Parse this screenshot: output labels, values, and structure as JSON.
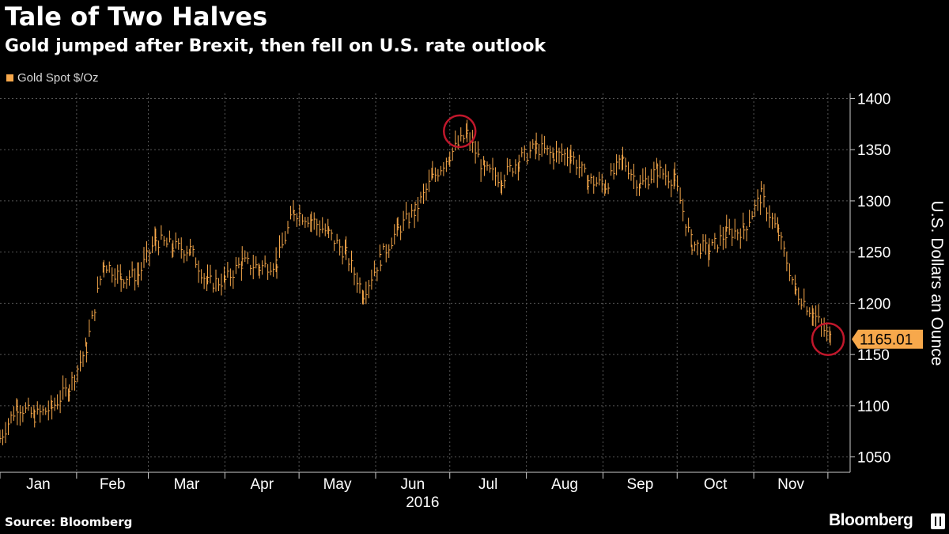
{
  "header": {
    "title": "Tale of Two Halves",
    "subtitle": "Gold jumped after Brexit, then fell on U.S. rate outlook"
  },
  "footer": {
    "source": "Source: Bloomberg",
    "brand": "Bloomberg"
  },
  "colors": {
    "background": "#000000",
    "series": "#f7a84b",
    "highlight_circle": "#c0172b",
    "grid": "#555555"
  },
  "chart_data": {
    "type": "line",
    "title": "Tale of Two Halves",
    "subtitle": "Gold jumped after Brexit, then fell on U.S. rate outlook",
    "xlabel": "2016",
    "ylabel": "U.S. Dollars an Ounce",
    "legend": [
      "Gold Spot $/Oz"
    ],
    "legend_placement": "top-left",
    "x_ticks": [
      "Jan",
      "Feb",
      "Mar",
      "Apr",
      "May",
      "Jun",
      "Jul",
      "Aug",
      "Sep",
      "Oct",
      "Nov"
    ],
    "year_label": "2016",
    "y_ticks": [
      1050,
      1100,
      1150,
      1200,
      1250,
      1300,
      1350,
      1400
    ],
    "ylim": [
      1035,
      1405
    ],
    "grid": true,
    "last_value_label": "1165.01",
    "annotations": [
      "circle at July high",
      "circle at latest value"
    ],
    "series": [
      {
        "name": "Gold Spot $/Oz",
        "x": [
          "2016-01-01",
          "2016-01-08",
          "2016-01-15",
          "2016-01-22",
          "2016-01-29",
          "2016-02-05",
          "2016-02-12",
          "2016-02-19",
          "2016-02-26",
          "2016-03-04",
          "2016-03-11",
          "2016-03-18",
          "2016-03-25",
          "2016-04-01",
          "2016-04-08",
          "2016-04-15",
          "2016-04-22",
          "2016-04-29",
          "2016-05-06",
          "2016-05-13",
          "2016-05-20",
          "2016-05-27",
          "2016-06-03",
          "2016-06-10",
          "2016-06-17",
          "2016-06-24",
          "2016-07-01",
          "2016-07-08",
          "2016-07-15",
          "2016-07-22",
          "2016-07-29",
          "2016-08-05",
          "2016-08-12",
          "2016-08-19",
          "2016-08-26",
          "2016-09-02",
          "2016-09-09",
          "2016-09-16",
          "2016-09-23",
          "2016-09-30",
          "2016-10-07",
          "2016-10-14",
          "2016-10-21",
          "2016-10-28",
          "2016-11-04",
          "2016-11-11",
          "2016-11-18",
          "2016-11-25",
          "2016-12-02"
        ],
        "values": [
          1068,
          1100,
          1090,
          1098,
          1118,
          1157,
          1240,
          1225,
          1228,
          1262,
          1255,
          1252,
          1220,
          1222,
          1240,
          1235,
          1240,
          1290,
          1282,
          1268,
          1248,
          1210,
          1244,
          1272,
          1290,
          1322,
          1345,
          1365,
          1330,
          1322,
          1340,
          1352,
          1345,
          1345,
          1320,
          1315,
          1340,
          1315,
          1330,
          1320,
          1258,
          1252,
          1268,
          1272,
          1305,
          1268,
          1212,
          1190,
          1165.01
        ]
      }
    ]
  }
}
